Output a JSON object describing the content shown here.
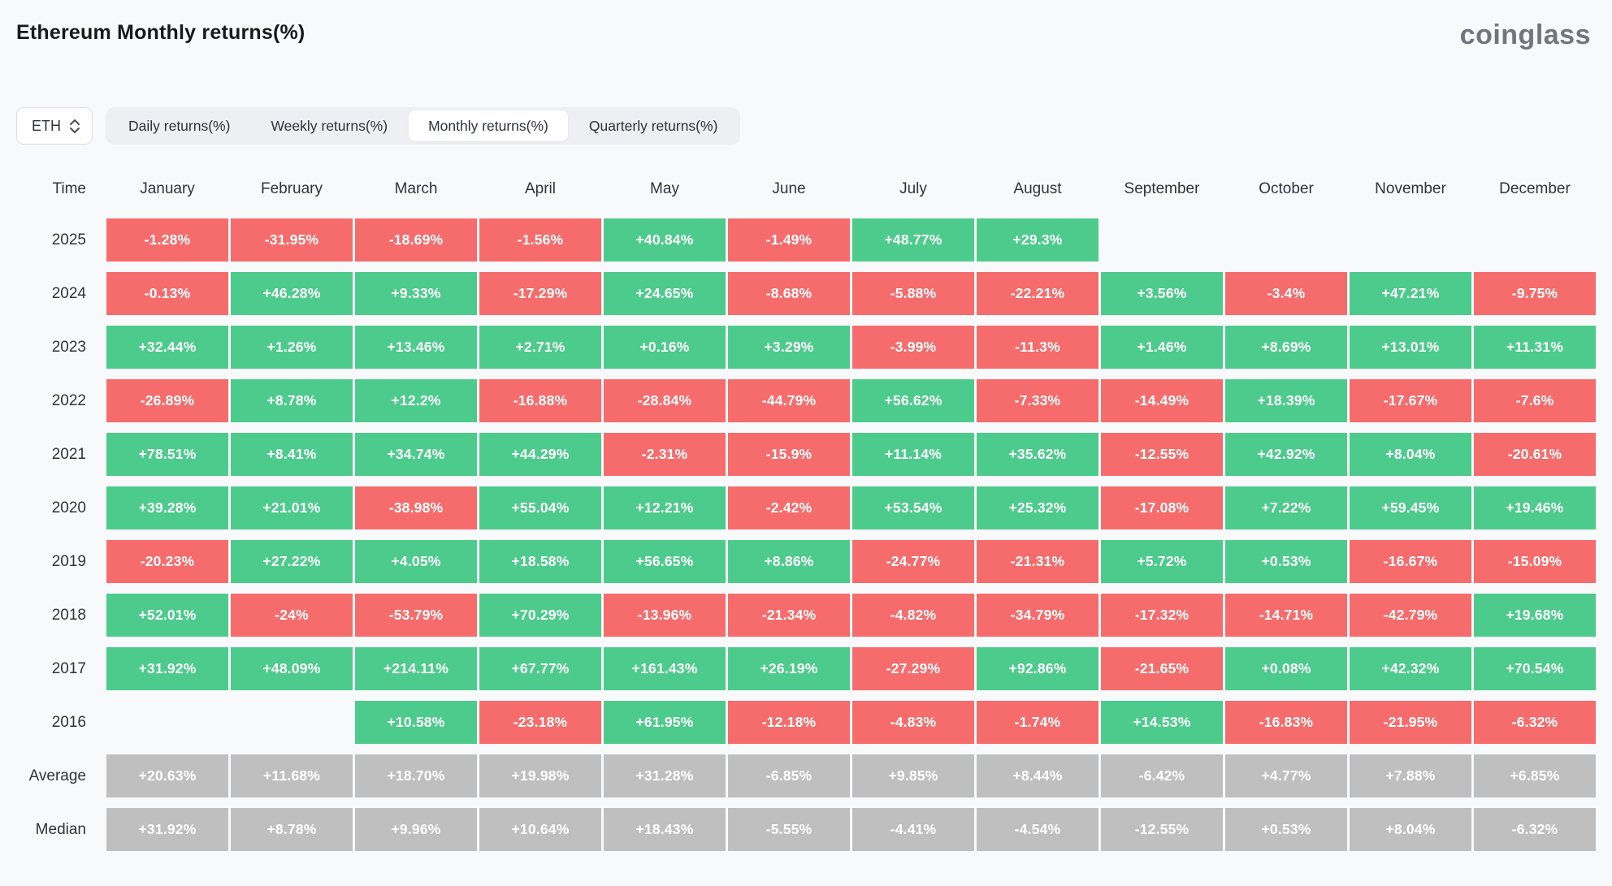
{
  "header": {
    "title": "Ethereum Monthly returns(%)",
    "logo": "coinglass"
  },
  "controls": {
    "symbol_select": {
      "value": "ETH"
    },
    "tabs": [
      {
        "label": "Daily returns(%)",
        "active": false
      },
      {
        "label": "Weekly returns(%)",
        "active": false
      },
      {
        "label": "Monthly returns(%)",
        "active": true
      },
      {
        "label": "Quarterly returns(%)",
        "active": false
      }
    ]
  },
  "colors": {
    "positive": "#4dcb8c",
    "negative": "#f66c6c",
    "neutral": "#bfbfbf",
    "background": "#f8f9fb"
  },
  "chart_data": {
    "type": "heatmap",
    "title": "Ethereum Monthly returns(%)",
    "columns": [
      "Time",
      "January",
      "February",
      "March",
      "April",
      "May",
      "June",
      "July",
      "August",
      "September",
      "October",
      "November",
      "December"
    ],
    "rows": [
      {
        "label": "2025",
        "summary": false,
        "values": [
          "-1.28%",
          "-31.95%",
          "-18.69%",
          "-1.56%",
          "+40.84%",
          "-1.49%",
          "+48.77%",
          "+29.3%",
          "",
          "",
          "",
          ""
        ]
      },
      {
        "label": "2024",
        "summary": false,
        "values": [
          "-0.13%",
          "+46.28%",
          "+9.33%",
          "-17.29%",
          "+24.65%",
          "-8.68%",
          "-5.88%",
          "-22.21%",
          "+3.56%",
          "-3.4%",
          "+47.21%",
          "-9.75%"
        ]
      },
      {
        "label": "2023",
        "summary": false,
        "values": [
          "+32.44%",
          "+1.26%",
          "+13.46%",
          "+2.71%",
          "+0.16%",
          "+3.29%",
          "-3.99%",
          "-11.3%",
          "+1.46%",
          "+8.69%",
          "+13.01%",
          "+11.31%"
        ]
      },
      {
        "label": "2022",
        "summary": false,
        "values": [
          "-26.89%",
          "+8.78%",
          "+12.2%",
          "-16.88%",
          "-28.84%",
          "-44.79%",
          "+56.62%",
          "-7.33%",
          "-14.49%",
          "+18.39%",
          "-17.67%",
          "-7.6%"
        ]
      },
      {
        "label": "2021",
        "summary": false,
        "values": [
          "+78.51%",
          "+8.41%",
          "+34.74%",
          "+44.29%",
          "-2.31%",
          "-15.9%",
          "+11.14%",
          "+35.62%",
          "-12.55%",
          "+42.92%",
          "+8.04%",
          "-20.61%"
        ]
      },
      {
        "label": "2020",
        "summary": false,
        "values": [
          "+39.28%",
          "+21.01%",
          "-38.98%",
          "+55.04%",
          "+12.21%",
          "-2.42%",
          "+53.54%",
          "+25.32%",
          "-17.08%",
          "+7.22%",
          "+59.45%",
          "+19.46%"
        ]
      },
      {
        "label": "2019",
        "summary": false,
        "values": [
          "-20.23%",
          "+27.22%",
          "+4.05%",
          "+18.58%",
          "+56.65%",
          "+8.86%",
          "-24.77%",
          "-21.31%",
          "+5.72%",
          "+0.53%",
          "-16.67%",
          "-15.09%"
        ]
      },
      {
        "label": "2018",
        "summary": false,
        "values": [
          "+52.01%",
          "-24%",
          "-53.79%",
          "+70.29%",
          "-13.96%",
          "-21.34%",
          "-4.82%",
          "-34.79%",
          "-17.32%",
          "-14.71%",
          "-42.79%",
          "+19.68%"
        ]
      },
      {
        "label": "2017",
        "summary": false,
        "values": [
          "+31.92%",
          "+48.09%",
          "+214.11%",
          "+67.77%",
          "+161.43%",
          "+26.19%",
          "-27.29%",
          "+92.86%",
          "-21.65%",
          "+0.08%",
          "+42.32%",
          "+70.54%"
        ]
      },
      {
        "label": "2016",
        "summary": false,
        "values": [
          "",
          "",
          "+10.58%",
          "-23.18%",
          "+61.95%",
          "-12.18%",
          "-4.83%",
          "-1.74%",
          "+14.53%",
          "-16.83%",
          "-21.95%",
          "-6.32%"
        ]
      },
      {
        "label": "Average",
        "summary": true,
        "values": [
          "+20.63%",
          "+11.68%",
          "+18.70%",
          "+19.98%",
          "+31.28%",
          "-6.85%",
          "+9.85%",
          "+8.44%",
          "-6.42%",
          "+4.77%",
          "+7.88%",
          "+6.85%"
        ]
      },
      {
        "label": "Median",
        "summary": true,
        "values": [
          "+31.92%",
          "+8.78%",
          "+9.96%",
          "+10.64%",
          "+18.43%",
          "-5.55%",
          "-4.41%",
          "-4.54%",
          "-12.55%",
          "+0.53%",
          "+8.04%",
          "-6.32%"
        ]
      }
    ]
  }
}
